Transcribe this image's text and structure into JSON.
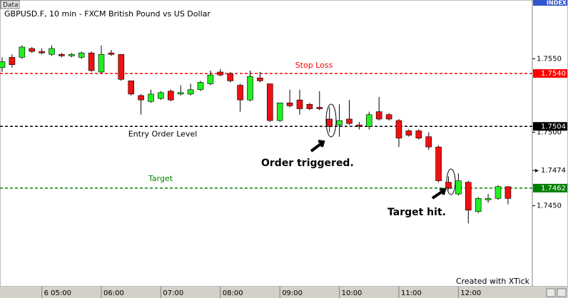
{
  "chart_data": {
    "type": "candlestick",
    "title": "GBPUSD.F, 10 min - FXCM British Pound vs US Dollar",
    "data_button": "Data",
    "index_label": "INDEX",
    "watermark": "Created with XTick",
    "annotations": [
      "Order triggered.",
      "Target hit."
    ],
    "categories": [
      null,
      null,
      null,
      null,
      "6 05:00",
      null,
      null,
      null,
      null,
      null,
      "06:00",
      null,
      null,
      null,
      null,
      null,
      "07:00",
      null,
      null,
      null,
      null,
      null,
      "08:00",
      null,
      null,
      null,
      null,
      null,
      "09:00",
      null,
      null,
      null,
      null,
      null,
      "10:00",
      null,
      null,
      null,
      null,
      null,
      "11:00",
      null,
      null,
      null,
      null,
      null,
      "12:00",
      null,
      null,
      null,
      null,
      null
    ],
    "open": [
      1.7544,
      1.7551,
      1.7551,
      1.7557,
      1.7555,
      1.7553,
      1.7553,
      1.7552,
      1.7551,
      1.7554,
      1.7541,
      1.7554,
      1.7553,
      1.7535,
      1.7525,
      1.7521,
      1.7523,
      1.7528,
      1.7526,
      1.7526,
      1.7529,
      1.7533,
      1.7541,
      1.754,
      1.7532,
      1.7522,
      1.7537,
      1.7533,
      1.7508,
      1.752,
      1.7522,
      1.7519,
      1.7517,
      1.7509,
      1.7505,
      1.7509,
      1.7505,
      1.7504,
      1.7514,
      1.7512,
      1.7508,
      1.7501,
      1.7501,
      1.7497,
      1.749,
      1.7466,
      1.7458,
      1.7466,
      1.7446,
      1.7454,
      1.7455,
      1.7463
    ],
    "high": [
      1.7551,
      1.7553,
      1.7559,
      1.7558,
      1.7557,
      1.7559,
      1.7554,
      1.7554,
      1.7555,
      1.7555,
      1.7559,
      1.7556,
      1.7553,
      1.7535,
      1.7526,
      1.7529,
      1.7528,
      1.7529,
      1.7532,
      1.7533,
      1.7535,
      1.7542,
      1.7543,
      1.7541,
      1.7533,
      1.7542,
      1.7541,
      1.7533,
      1.752,
      1.7529,
      1.7529,
      1.752,
      1.7528,
      1.7517,
      1.7519,
      1.7522,
      1.7507,
      1.7514,
      1.7524,
      1.7513,
      1.7509,
      1.7502,
      1.7502,
      1.75,
      1.7491,
      1.747,
      1.7472,
      1.7467,
      1.7456,
      1.7458,
      1.7464,
      1.7463
    ],
    "low": [
      1.7541,
      1.7544,
      1.755,
      1.7554,
      1.7553,
      1.7552,
      1.7551,
      1.7551,
      1.755,
      1.7541,
      1.754,
      1.7552,
      1.7535,
      1.7525,
      1.7512,
      1.752,
      1.7522,
      1.7521,
      1.7525,
      1.7525,
      1.7528,
      1.7532,
      1.7538,
      1.7534,
      1.7514,
      1.7521,
      1.7534,
      1.7507,
      1.7507,
      1.7517,
      1.7512,
      1.7515,
      1.7515,
      1.75,
      1.7497,
      1.7505,
      1.7502,
      1.7502,
      1.7508,
      1.7508,
      1.749,
      1.7497,
      1.7495,
      1.7488,
      1.7466,
      1.7461,
      1.7457,
      1.7438,
      1.7445,
      1.7452,
      1.7454,
      1.7451
    ],
    "close": [
      1.7548,
      1.7546,
      1.7558,
      1.7555,
      1.7554,
      1.7557,
      1.7552,
      1.7553,
      1.7554,
      1.7542,
      1.7553,
      1.7553,
      1.7536,
      1.7526,
      1.7522,
      1.7526,
      1.7527,
      1.7522,
      1.7527,
      1.7529,
      1.7534,
      1.7539,
      1.7539,
      1.7535,
      1.7522,
      1.7538,
      1.7535,
      1.7508,
      1.752,
      1.7518,
      1.7516,
      1.7516,
      1.7516,
      1.7504,
      1.7508,
      1.7506,
      1.7504,
      1.7512,
      1.7509,
      1.7509,
      1.7496,
      1.7498,
      1.7496,
      1.749,
      1.7467,
      1.7462,
      1.7467,
      1.7447,
      1.7455,
      1.7455,
      1.7463,
      1.7455
    ],
    "up_color": "#22ee22",
    "down_color": "#ee1111",
    "ylim": [
      1.7395,
      1.759
    ],
    "yticks": [
      {
        "value": 1.755,
        "label": "1.7550"
      },
      {
        "value": 1.75,
        "label": "1.7500"
      },
      {
        "value": 1.745,
        "label": "1.7450"
      }
    ],
    "levels": [
      {
        "name": "Stop Loss",
        "value": {
          "value": 1.754,
          "label": "1.7540"
        },
        "color": "#ff0000"
      },
      {
        "name": "Entry Order Level",
        "value": {
          "value": 1.7504,
          "label": "1.7504"
        },
        "color": "#000000"
      },
      {
        "name": "Target",
        "value": {
          "value": 1.7462,
          "label": "1.7462"
        },
        "color": "#008000"
      }
    ],
    "price_marker": {
      "value": 1.7474,
      "label": "1.7474"
    }
  }
}
